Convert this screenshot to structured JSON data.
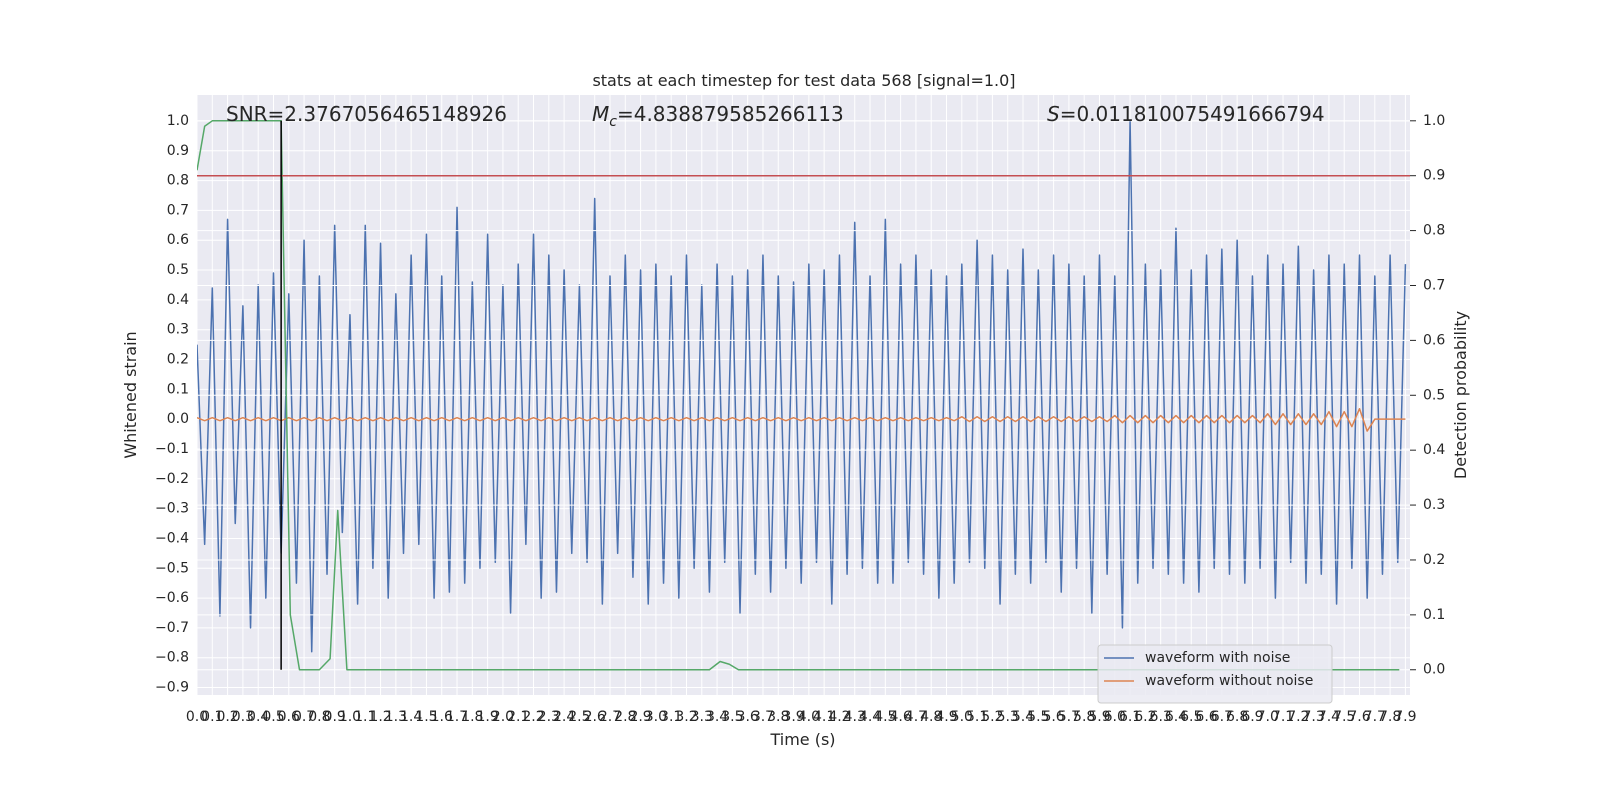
{
  "chart_data": {
    "type": "line",
    "title": "stats at each timestep for test data 568 [signal=1.0]",
    "x_label": "Time (s)",
    "y_label": "Whitened strain",
    "y2_label": "Detection probability",
    "annotations": [
      {
        "text": "SNR=2.3767056465148926"
      },
      {
        "symbol": "M",
        "sub": "c",
        "text": "=4.838879585266113"
      },
      {
        "symbol": "S",
        "text": "=0.011810075491666794"
      }
    ],
    "grid": true,
    "legend": "lower right",
    "xlim": [
      0,
      7.93
    ],
    "ylim": [
      -0.925,
      1.087
    ],
    "y2lim": [
      -0.046,
      1.047
    ],
    "xticks": [
      {
        "value": 0,
        "label": "0.0"
      },
      0.1,
      0.2,
      0.3,
      0.4,
      0.5,
      0.6,
      0.7,
      0.8,
      0.9,
      {
        "value": 1,
        "label": "1.0"
      },
      1.1,
      1.2,
      1.3,
      1.4,
      1.5,
      1.6,
      1.7,
      1.8,
      1.9,
      {
        "value": 2,
        "label": "2.0"
      },
      2.1,
      2.2,
      2.3,
      2.4,
      2.5,
      2.6,
      2.7,
      2.8,
      2.9,
      {
        "value": 3,
        "label": "3.0"
      },
      3.1,
      3.2,
      3.3,
      3.4,
      3.5,
      3.6,
      3.7,
      3.8,
      3.9,
      {
        "value": 4,
        "label": "4.0"
      },
      4.1,
      4.2,
      4.3,
      4.4,
      4.5,
      4.6,
      4.7,
      4.8,
      4.9,
      {
        "value": 5,
        "label": "5.0"
      },
      5.1,
      5.2,
      5.3,
      5.4,
      5.5,
      5.6,
      5.7,
      5.8,
      5.9,
      {
        "value": 6,
        "label": "6.0"
      },
      6.1,
      6.2,
      6.3,
      6.4,
      6.5,
      6.6,
      6.7,
      6.8,
      6.9,
      {
        "value": 7,
        "label": "7.0"
      },
      7.1,
      7.2,
      7.3,
      7.4,
      7.5,
      7.6,
      7.7,
      7.8,
      7.9
    ],
    "yticks": [
      {
        "value": -0.9,
        "label": "−0.9"
      },
      {
        "value": -0.8,
        "label": "−0.8"
      },
      {
        "value": -0.7,
        "label": "−0.7"
      },
      {
        "value": -0.6,
        "label": "−0.6"
      },
      {
        "value": -0.5,
        "label": "−0.5"
      },
      {
        "value": -0.4,
        "label": "−0.4"
      },
      {
        "value": -0.3,
        "label": "−0.3"
      },
      {
        "value": -0.2,
        "label": "−0.2"
      },
      {
        "value": -0.1,
        "label": "−0.1"
      },
      {
        "value": 0,
        "label": "0.0"
      },
      0.1,
      0.2,
      0.3,
      0.4,
      0.5,
      0.6,
      0.7,
      0.8,
      0.9,
      {
        "value": 1,
        "label": "1.0"
      }
    ],
    "y2ticks": [
      {
        "value": 0,
        "label": "0.0"
      },
      0.1,
      0.2,
      0.3,
      0.4,
      0.5,
      0.6,
      0.7,
      0.8,
      0.9,
      {
        "value": 1,
        "label": "1.0"
      }
    ],
    "x": [
      0,
      0.05,
      0.1,
      0.15,
      0.2,
      0.25,
      0.3,
      0.35,
      0.4,
      0.45,
      0.5,
      0.55,
      0.6,
      0.65,
      0.7,
      0.75,
      0.8,
      0.85,
      0.9,
      0.95,
      1,
      1.05,
      1.1,
      1.15,
      1.2,
      1.25,
      1.3,
      1.35,
      1.4,
      1.45,
      1.5,
      1.55,
      1.6,
      1.65,
      1.7,
      1.75,
      1.8,
      1.85,
      1.9,
      1.95,
      2,
      2.05,
      2.1,
      2.15,
      2.2,
      2.25,
      2.3,
      2.35,
      2.4,
      2.45,
      2.5,
      2.55,
      2.6,
      2.65,
      2.7,
      2.75,
      2.8,
      2.85,
      2.9,
      2.95,
      3,
      3.05,
      3.1,
      3.15,
      3.2,
      3.25,
      3.3,
      3.35,
      3.4,
      3.45,
      3.5,
      3.55,
      3.6,
      3.65,
      3.7,
      3.75,
      3.8,
      3.85,
      3.9,
      3.95,
      4,
      4.05,
      4.1,
      4.15,
      4.2,
      4.25,
      4.3,
      4.35,
      4.4,
      4.45,
      4.5,
      4.55,
      4.6,
      4.65,
      4.7,
      4.75,
      4.8,
      4.85,
      4.9,
      4.95,
      5,
      5.05,
      5.1,
      5.15,
      5.2,
      5.25,
      5.3,
      5.35,
      5.4,
      5.45,
      5.5,
      5.55,
      5.6,
      5.65,
      5.7,
      5.75,
      5.8,
      5.85,
      5.9,
      5.95,
      6,
      6.05,
      6.1,
      6.15,
      6.2,
      6.25,
      6.3,
      6.35,
      6.4,
      6.45,
      6.5,
      6.55,
      6.6,
      6.65,
      6.7,
      6.75,
      6.8,
      6.85,
      6.9,
      6.95,
      7,
      7.05,
      7.1,
      7.15,
      7.2,
      7.25,
      7.3,
      7.35,
      7.4,
      7.45,
      7.5,
      7.55,
      7.6,
      7.65,
      7.7,
      7.75,
      7.8,
      7.85,
      7.9
    ],
    "series": [
      {
        "name": "waveform with noise",
        "color": "#4c72b0",
        "values": [
          0.25,
          -0.42,
          0.44,
          -0.66,
          0.67,
          -0.35,
          0.38,
          -0.7,
          0.45,
          -0.6,
          0.49,
          -0.45,
          0.42,
          -0.55,
          0.6,
          -0.78,
          0.48,
          -0.52,
          0.65,
          -0.38,
          0.35,
          -0.62,
          0.65,
          -0.5,
          0.59,
          -0.6,
          0.42,
          -0.45,
          0.55,
          -0.42,
          0.62,
          -0.6,
          0.48,
          -0.58,
          0.71,
          -0.55,
          0.46,
          -0.5,
          0.62,
          -0.48,
          0.45,
          -0.65,
          0.52,
          -0.42,
          0.62,
          -0.6,
          0.55,
          -0.58,
          0.5,
          -0.45,
          0.45,
          -0.48,
          0.74,
          -0.62,
          0.48,
          -0.45,
          0.55,
          -0.53,
          0.5,
          -0.62,
          0.52,
          -0.55,
          0.48,
          -0.6,
          0.55,
          -0.5,
          0.45,
          -0.58,
          0.52,
          -0.48,
          0.48,
          -0.65,
          0.5,
          -0.52,
          0.55,
          -0.58,
          0.48,
          -0.5,
          0.46,
          -0.55,
          0.52,
          -0.48,
          0.5,
          -0.62,
          0.55,
          -0.52,
          0.66,
          -0.5,
          0.48,
          -0.55,
          0.67,
          -0.55,
          0.52,
          -0.48,
          0.55,
          -0.52,
          0.5,
          -0.6,
          0.48,
          -0.55,
          0.52,
          -0.48,
          0.6,
          -0.5,
          0.55,
          -0.62,
          0.5,
          -0.52,
          0.57,
          -0.55,
          0.5,
          -0.48,
          0.55,
          -0.58,
          0.52,
          -0.5,
          0.48,
          -0.65,
          0.55,
          -0.52,
          0.48,
          -0.7,
          1.0,
          -0.55,
          0.52,
          -0.5,
          0.5,
          -0.52,
          0.64,
          -0.55,
          0.5,
          -0.58,
          0.55,
          -0.5,
          0.57,
          -0.52,
          0.6,
          -0.55,
          0.48,
          -0.5,
          0.55,
          -0.6,
          0.52,
          -0.48,
          0.58,
          -0.55,
          0.5,
          -0.52,
          0.55,
          -0.62,
          0.52,
          -0.5,
          0.55,
          -0.6,
          0.48,
          -0.52,
          0.55,
          -0.48,
          0.52
        ]
      },
      {
        "name": "waveform without noise",
        "color": "#dd8452",
        "values": [
          0.005,
          -0.005,
          0.005,
          -0.005,
          0.005,
          -0.005,
          0.005,
          -0.005,
          0.005,
          -0.005,
          0.005,
          -0.005,
          0.005,
          -0.005,
          0.005,
          -0.005,
          0.005,
          -0.005,
          0.005,
          -0.005,
          0.005,
          -0.005,
          0.005,
          -0.005,
          0.005,
          -0.005,
          0.005,
          -0.005,
          0.005,
          -0.005,
          0.005,
          -0.005,
          0.005,
          -0.005,
          0.005,
          -0.005,
          0.005,
          -0.005,
          0.005,
          -0.005,
          0.005,
          -0.005,
          0.005,
          -0.005,
          0.005,
          -0.005,
          0.005,
          -0.005,
          0.005,
          -0.005,
          0.005,
          -0.005,
          0.005,
          -0.005,
          0.005,
          -0.005,
          0.005,
          -0.005,
          0.005,
          -0.005,
          0.005,
          -0.005,
          0.005,
          -0.005,
          0.005,
          -0.005,
          0.005,
          -0.005,
          0.005,
          -0.005,
          0.005,
          -0.005,
          0.005,
          -0.005,
          0.005,
          -0.005,
          0.005,
          -0.005,
          0.005,
          -0.005,
          0.005,
          -0.005,
          0.005,
          -0.005,
          0.005,
          -0.005,
          0.005,
          -0.005,
          0.005,
          -0.005,
          0.005,
          -0.005,
          0.005,
          -0.005,
          0.005,
          -0.005,
          0.005,
          -0.005,
          0.005,
          -0.005,
          0.008,
          -0.008,
          0.008,
          -0.008,
          0.008,
          -0.008,
          0.008,
          -0.008,
          0.008,
          -0.008,
          0.008,
          -0.008,
          0.008,
          -0.008,
          0.008,
          -0.008,
          0.008,
          -0.008,
          0.008,
          -0.008,
          0.012,
          -0.012,
          0.012,
          -0.012,
          0.012,
          -0.012,
          0.012,
          -0.012,
          0.012,
          -0.012,
          0.012,
          -0.012,
          0.012,
          -0.012,
          0.012,
          -0.012,
          0.012,
          -0.012,
          0.012,
          -0.012,
          0.018,
          -0.018,
          0.018,
          -0.018,
          0.018,
          -0.018,
          0.018,
          -0.018,
          0.025,
          -0.025,
          0.025,
          -0.025,
          0.035,
          -0.04,
          0,
          0,
          0,
          0,
          0
        ]
      },
      {
        "color": "#55a868",
        "axis": "y2",
        "x": [
          0,
          0.05,
          0.1,
          0.2,
          0.3,
          0.4,
          0.55,
          0.61,
          0.67,
          0.8,
          0.87,
          0.92,
          0.98,
          3.35,
          3.42,
          3.48,
          3.54,
          7.86
        ],
        "values": [
          0.91,
          0.99,
          1.0,
          1.0,
          1.0,
          1.0,
          1.0,
          0.1,
          0.0,
          0.0,
          0.02,
          0.29,
          0.0,
          0.0,
          0.015,
          0.01,
          0.0,
          0.0
        ]
      }
    ],
    "hline": {
      "value": 0.9,
      "axis": "y2",
      "color": "#c44e52"
    },
    "vline": {
      "x": 0.55,
      "y2": [
        0,
        1
      ],
      "color": "#000000"
    }
  }
}
